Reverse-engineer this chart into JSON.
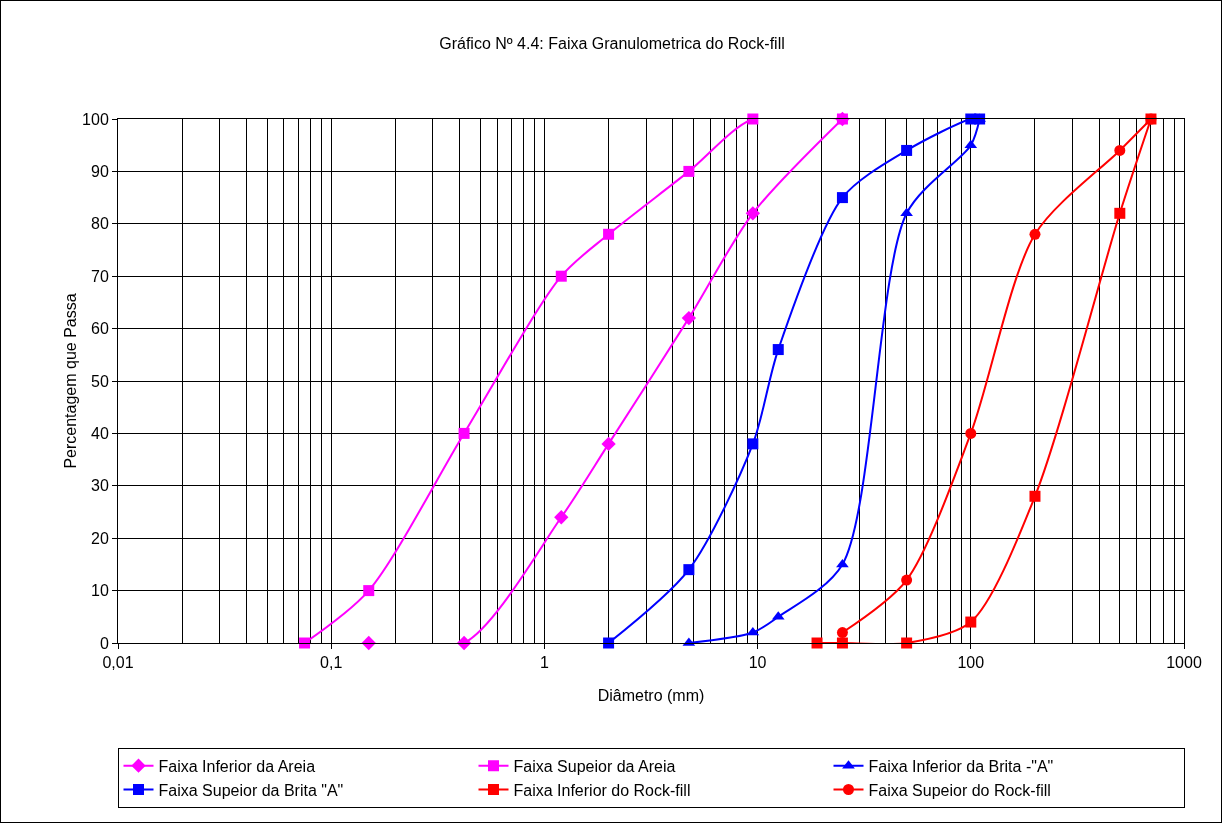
{
  "chart_data": {
    "type": "line",
    "title": "Gráfico Nº 4.4: Faixa Granulometrica do Rock-fill",
    "xlabel": "Diâmetro (mm)",
    "ylabel": "Percentagem que Passa",
    "log": "x",
    "grid": true,
    "legend": "bottom",
    "xlim": [
      0.01,
      1000
    ],
    "xticks": [
      {
        "value": 0.01,
        "label": "0,01"
      },
      {
        "value": 0.1,
        "label": "0,1"
      },
      1,
      10,
      100,
      1000
    ],
    "ylim": [
      0,
      100
    ],
    "yticks": [
      0,
      10,
      20,
      30,
      40,
      50,
      60,
      70,
      80,
      90,
      100
    ],
    "series": [
      {
        "name": "Faixa Inferior da Areia",
        "color": "#ff00ff",
        "marker": "diamond",
        "x": [
          0.15,
          0.42,
          1.2,
          2,
          4.76,
          9.5,
          25
        ],
        "values": [
          0,
          0,
          24,
          38,
          62,
          82,
          100
        ]
      },
      {
        "name": "Faixa Supeior da Areia",
        "color": "#ff00ff",
        "marker": "square",
        "x": [
          0.075,
          0.15,
          0.42,
          1.2,
          2,
          4.76,
          9.5,
          25
        ],
        "values": [
          0,
          10,
          40,
          70,
          78,
          90,
          100,
          100
        ]
      },
      {
        "name": "Faixa Inferior da Brita -\"A\"",
        "color": "#0000ff",
        "marker": "triangle",
        "x": [
          4.76,
          9.5,
          12.5,
          25,
          50,
          100,
          110
        ],
        "values": [
          0,
          2,
          5,
          15,
          82,
          95,
          100
        ]
      },
      {
        "name": "Faixa Supeior da Brita \"A\"",
        "color": "#0000ff",
        "marker": "square",
        "x": [
          2,
          4.76,
          9.5,
          12.5,
          25,
          50,
          100,
          110
        ],
        "values": [
          0,
          14,
          38,
          56,
          85,
          94,
          100,
          100
        ]
      },
      {
        "name": "Faixa Inferior do Rock-fill",
        "color": "#ff0000",
        "marker": "square",
        "x": [
          19,
          25,
          50,
          100,
          200,
          500,
          700
        ],
        "values": [
          0,
          0,
          0,
          4,
          28,
          82,
          100
        ]
      },
      {
        "name": "Faixa Supeior do Rock-fill",
        "color": "#ff0000",
        "marker": "circle",
        "x": [
          25,
          50,
          100,
          200,
          500,
          700
        ],
        "values": [
          2,
          12,
          40,
          78,
          94,
          100
        ]
      }
    ]
  }
}
